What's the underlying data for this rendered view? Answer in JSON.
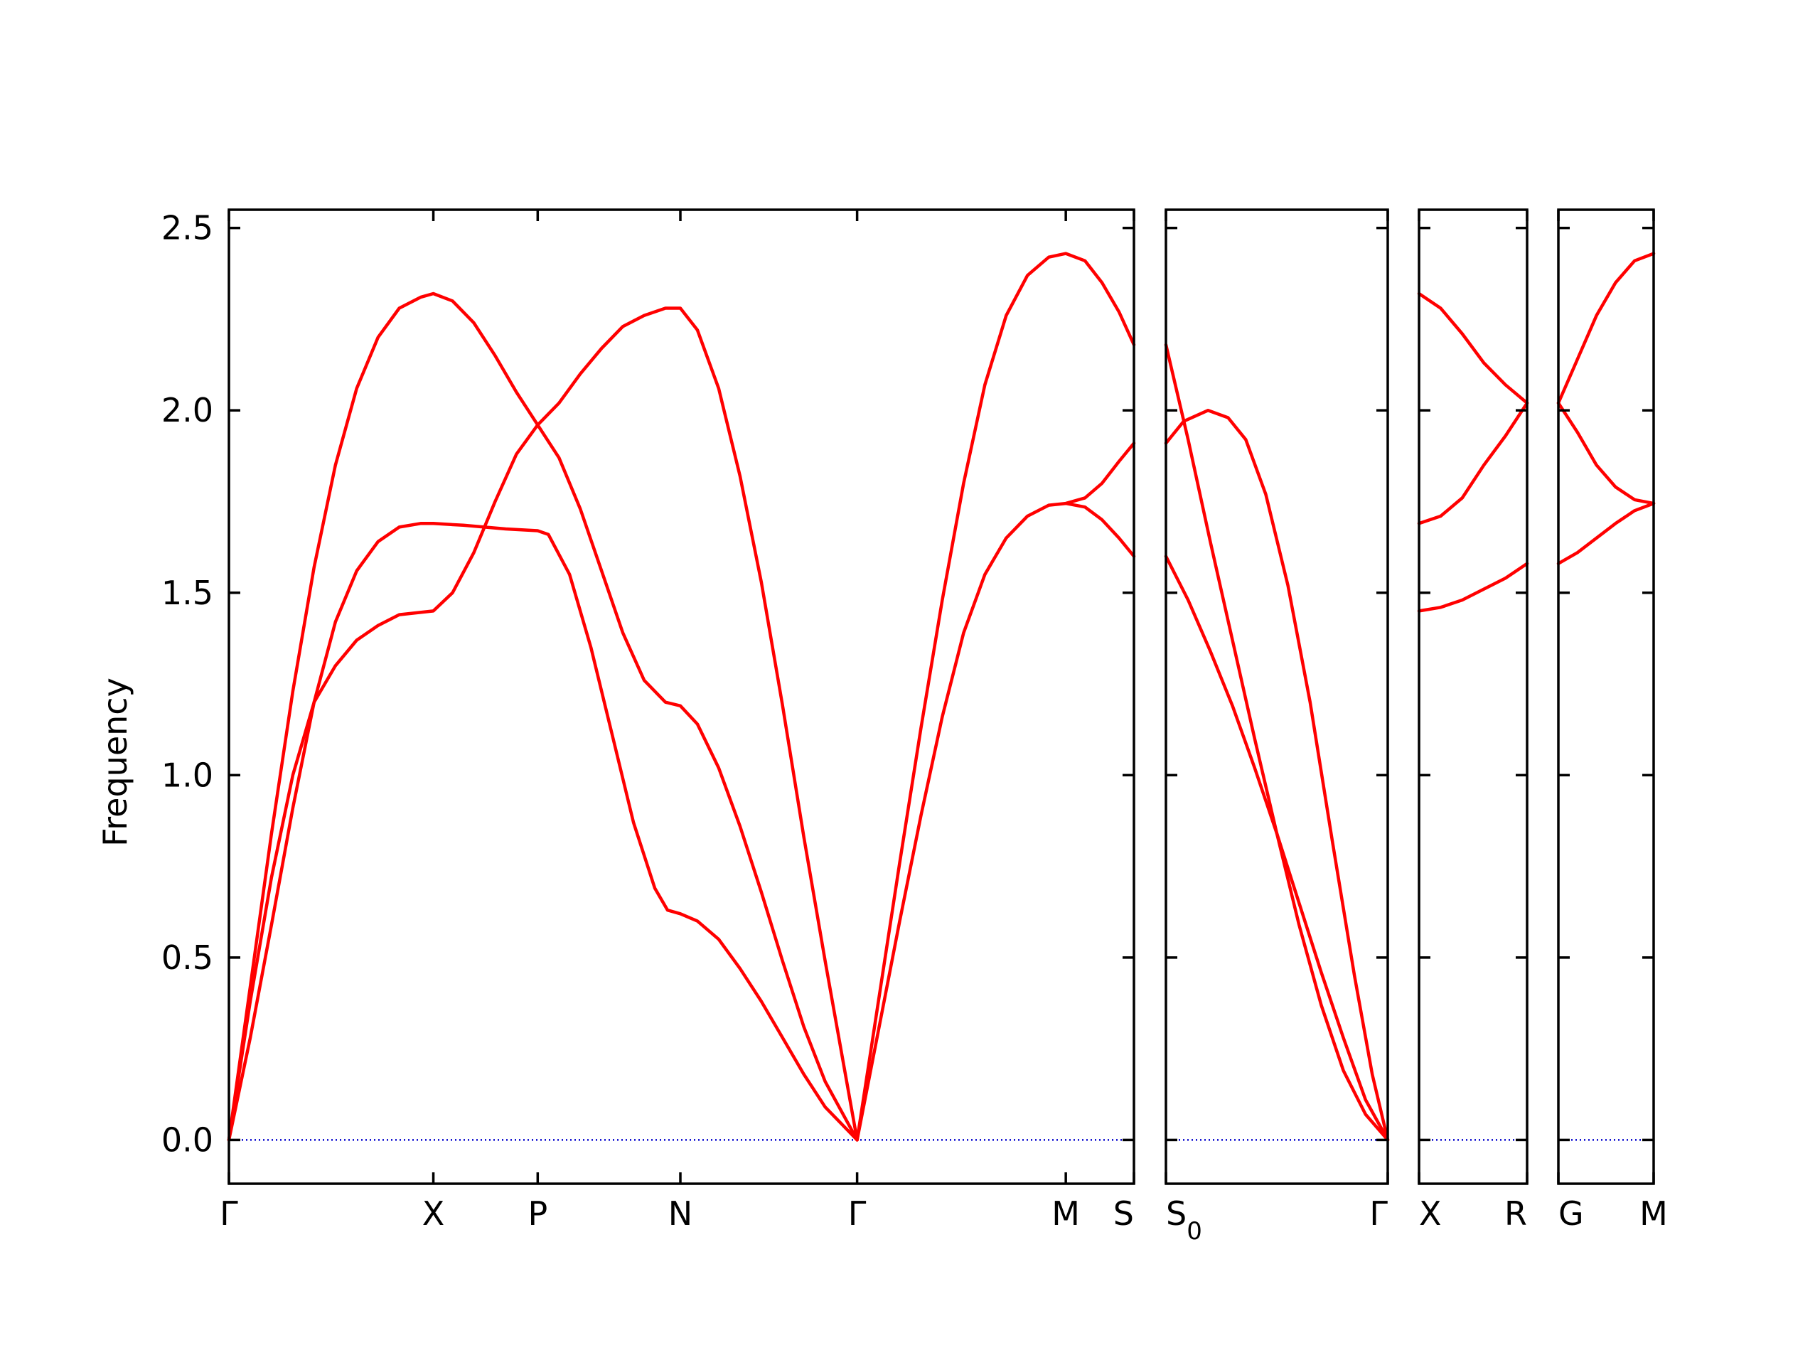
{
  "chart_data": {
    "type": "line",
    "ylabel": "Frequency",
    "ylim": [
      -0.12,
      2.55
    ],
    "yticks": [
      "0.0",
      "0.5",
      "1.0",
      "1.5",
      "2.0",
      "2.5"
    ],
    "ytick_values": [
      0.0,
      0.5,
      1.0,
      1.5,
      2.0,
      2.5
    ],
    "grid": false,
    "line_color": "#ff0000",
    "zero_line_color": "#0000cc",
    "panels": [
      {
        "id": "panel-1",
        "xlim": [
          0,
          4.25
        ],
        "xticks": [
          {
            "x": 0.0,
            "label": "Γ"
          },
          {
            "x": 0.96,
            "label": "X"
          },
          {
            "x": 1.45,
            "label": "P"
          },
          {
            "x": 2.12,
            "label": "N"
          },
          {
            "x": 2.95,
            "label": "Γ"
          },
          {
            "x": 3.93,
            "label": "M"
          },
          {
            "x": 4.25,
            "label": "S"
          }
        ],
        "series": [
          {
            "points": [
              [
                0,
                0
              ],
              [
                0.1,
                0.42
              ],
              [
                0.2,
                0.84
              ],
              [
                0.3,
                1.23
              ],
              [
                0.4,
                1.57
              ],
              [
                0.5,
                1.85
              ],
              [
                0.6,
                2.06
              ],
              [
                0.7,
                2.2
              ],
              [
                0.8,
                2.28
              ],
              [
                0.9,
                2.31
              ],
              [
                0.96,
                2.32
              ],
              [
                1.05,
                2.3
              ],
              [
                1.15,
                2.24
              ],
              [
                1.25,
                2.15
              ],
              [
                1.35,
                2.05
              ],
              [
                1.45,
                1.96
              ],
              [
                1.55,
                1.87
              ],
              [
                1.65,
                1.73
              ],
              [
                1.75,
                1.56
              ],
              [
                1.85,
                1.39
              ],
              [
                1.95,
                1.26
              ],
              [
                2.05,
                1.2
              ],
              [
                2.12,
                1.19
              ],
              [
                2.2,
                1.14
              ],
              [
                2.3,
                1.02
              ],
              [
                2.4,
                0.86
              ],
              [
                2.5,
                0.68
              ],
              [
                2.6,
                0.49
              ],
              [
                2.7,
                0.31
              ],
              [
                2.8,
                0.16
              ],
              [
                2.95,
                0
              ]
            ]
          },
          {
            "points": [
              [
                0,
                0
              ],
              [
                0.1,
                0.28
              ],
              [
                0.2,
                0.59
              ],
              [
                0.3,
                0.91
              ],
              [
                0.4,
                1.2
              ],
              [
                0.5,
                1.42
              ],
              [
                0.6,
                1.56
              ],
              [
                0.7,
                1.64
              ],
              [
                0.8,
                1.68
              ],
              [
                0.9,
                1.69
              ],
              [
                0.96,
                1.69
              ],
              [
                1.1,
                1.685
              ],
              [
                1.3,
                1.675
              ],
              [
                1.45,
                1.67
              ],
              [
                1.5,
                1.66
              ],
              [
                1.6,
                1.55
              ],
              [
                1.7,
                1.35
              ],
              [
                1.8,
                1.11
              ],
              [
                1.9,
                0.87
              ],
              [
                2.0,
                0.69
              ],
              [
                2.06,
                0.63
              ],
              [
                2.12,
                0.62
              ],
              [
                2.2,
                0.6
              ],
              [
                2.3,
                0.55
              ],
              [
                2.4,
                0.47
              ],
              [
                2.5,
                0.38
              ],
              [
                2.6,
                0.28
              ],
              [
                2.7,
                0.18
              ],
              [
                2.8,
                0.09
              ],
              [
                2.95,
                0
              ]
            ]
          },
          {
            "points": [
              [
                0,
                0
              ],
              [
                0.1,
                0.38
              ],
              [
                0.2,
                0.72
              ],
              [
                0.3,
                1.0
              ],
              [
                0.4,
                1.2
              ],
              [
                0.5,
                1.3
              ],
              [
                0.6,
                1.37
              ],
              [
                0.7,
                1.41
              ],
              [
                0.8,
                1.44
              ],
              [
                0.96,
                1.45
              ],
              [
                1.05,
                1.5
              ],
              [
                1.15,
                1.61
              ],
              [
                1.25,
                1.75
              ],
              [
                1.35,
                1.88
              ],
              [
                1.45,
                1.96
              ],
              [
                1.55,
                2.02
              ],
              [
                1.65,
                2.1
              ],
              [
                1.75,
                2.17
              ],
              [
                1.85,
                2.23
              ],
              [
                1.95,
                2.26
              ],
              [
                2.05,
                2.28
              ],
              [
                2.12,
                2.28
              ],
              [
                2.2,
                2.22
              ],
              [
                2.3,
                2.06
              ],
              [
                2.4,
                1.82
              ],
              [
                2.5,
                1.53
              ],
              [
                2.6,
                1.19
              ],
              [
                2.7,
                0.83
              ],
              [
                2.8,
                0.49
              ],
              [
                2.95,
                0
              ]
            ]
          },
          {
            "points": [
              [
                2.95,
                0
              ],
              [
                3.05,
                0.38
              ],
              [
                3.15,
                0.76
              ],
              [
                3.25,
                1.13
              ],
              [
                3.35,
                1.48
              ],
              [
                3.45,
                1.8
              ],
              [
                3.55,
                2.07
              ],
              [
                3.65,
                2.26
              ],
              [
                3.75,
                2.37
              ],
              [
                3.85,
                2.42
              ],
              [
                3.93,
                2.43
              ],
              [
                4.02,
                2.41
              ],
              [
                4.1,
                2.35
              ],
              [
                4.18,
                2.27
              ],
              [
                4.25,
                2.18
              ]
            ]
          },
          {
            "points": [
              [
                2.95,
                0
              ],
              [
                3.05,
                0.3
              ],
              [
                3.15,
                0.6
              ],
              [
                3.25,
                0.89
              ],
              [
                3.35,
                1.16
              ],
              [
                3.45,
                1.39
              ],
              [
                3.55,
                1.55
              ],
              [
                3.65,
                1.65
              ],
              [
                3.75,
                1.71
              ],
              [
                3.85,
                1.74
              ],
              [
                3.93,
                1.745
              ],
              [
                4.02,
                1.76
              ],
              [
                4.1,
                1.8
              ],
              [
                4.18,
                1.86
              ],
              [
                4.25,
                1.91
              ]
            ]
          },
          {
            "points": [
              [
                3.93,
                1.745
              ],
              [
                4.02,
                1.735
              ],
              [
                4.1,
                1.7
              ],
              [
                4.18,
                1.65
              ],
              [
                4.25,
                1.6
              ]
            ]
          }
        ]
      },
      {
        "id": "panel-2",
        "xlim": [
          0,
          1.0
        ],
        "xticks": [
          {
            "x": 0.0,
            "label": "S0"
          },
          {
            "x": 1.0,
            "label": "Γ"
          }
        ],
        "series": [
          {
            "points": [
              [
                0,
                2.18
              ],
              [
                0.1,
                1.92
              ],
              [
                0.2,
                1.64
              ],
              [
                0.3,
                1.37
              ],
              [
                0.4,
                1.1
              ],
              [
                0.5,
                0.84
              ],
              [
                0.6,
                0.59
              ],
              [
                0.7,
                0.37
              ],
              [
                0.8,
                0.19
              ],
              [
                0.9,
                0.07
              ],
              [
                1.0,
                0
              ]
            ]
          },
          {
            "points": [
              [
                0,
                1.91
              ],
              [
                0.08,
                1.97
              ],
              [
                0.19,
                2.0
              ],
              [
                0.28,
                1.98
              ],
              [
                0.36,
                1.92
              ],
              [
                0.45,
                1.77
              ],
              [
                0.55,
                1.52
              ],
              [
                0.65,
                1.2
              ],
              [
                0.75,
                0.82
              ],
              [
                0.85,
                0.45
              ],
              [
                0.93,
                0.18
              ],
              [
                1.0,
                0
              ]
            ]
          },
          {
            "points": [
              [
                0,
                1.6
              ],
              [
                0.1,
                1.48
              ],
              [
                0.2,
                1.34
              ],
              [
                0.3,
                1.19
              ],
              [
                0.4,
                1.02
              ],
              [
                0.5,
                0.84
              ],
              [
                0.6,
                0.65
              ],
              [
                0.7,
                0.46
              ],
              [
                0.8,
                0.28
              ],
              [
                0.9,
                0.11
              ],
              [
                1.0,
                0
              ]
            ]
          }
        ]
      },
      {
        "id": "panel-3",
        "xlim": [
          0,
          1.0
        ],
        "xticks": [
          {
            "x": 0.0,
            "label": "X"
          },
          {
            "x": 1.0,
            "label": "R"
          }
        ],
        "series": [
          {
            "points": [
              [
                0,
                2.32
              ],
              [
                0.2,
                2.28
              ],
              [
                0.4,
                2.21
              ],
              [
                0.6,
                2.13
              ],
              [
                0.8,
                2.07
              ],
              [
                1.0,
                2.02
              ]
            ]
          },
          {
            "points": [
              [
                0,
                1.69
              ],
              [
                0.2,
                1.71
              ],
              [
                0.4,
                1.76
              ],
              [
                0.6,
                1.85
              ],
              [
                0.8,
                1.93
              ],
              [
                1.0,
                2.02
              ]
            ]
          },
          {
            "points": [
              [
                0,
                1.45
              ],
              [
                0.2,
                1.46
              ],
              [
                0.4,
                1.48
              ],
              [
                0.6,
                1.51
              ],
              [
                0.8,
                1.54
              ],
              [
                1.0,
                1.58
              ]
            ]
          }
        ]
      },
      {
        "id": "panel-4",
        "xlim": [
          0,
          1.0
        ],
        "xticks": [
          {
            "x": 0.0,
            "label": "G"
          },
          {
            "x": 1.0,
            "label": "M"
          }
        ],
        "series": [
          {
            "points": [
              [
                0,
                2.02
              ],
              [
                0.2,
                2.14
              ],
              [
                0.4,
                2.26
              ],
              [
                0.6,
                2.35
              ],
              [
                0.8,
                2.41
              ],
              [
                1.0,
                2.43
              ]
            ]
          },
          {
            "points": [
              [
                0,
                2.02
              ],
              [
                0.2,
                1.94
              ],
              [
                0.4,
                1.85
              ],
              [
                0.6,
                1.79
              ],
              [
                0.8,
                1.755
              ],
              [
                1.0,
                1.745
              ]
            ]
          },
          {
            "points": [
              [
                0,
                1.58
              ],
              [
                0.2,
                1.61
              ],
              [
                0.4,
                1.65
              ],
              [
                0.6,
                1.69
              ],
              [
                0.8,
                1.725
              ],
              [
                1.0,
                1.745
              ]
            ]
          }
        ]
      }
    ]
  }
}
